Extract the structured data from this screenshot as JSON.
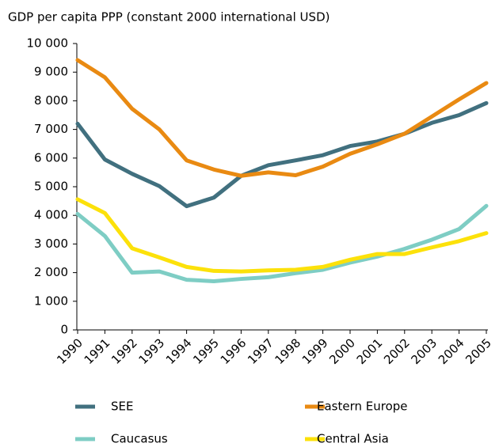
{
  "chart_data": {
    "type": "line",
    "title": "GDP per capita PPP (constant 2000 international USD)",
    "categories": [
      "1990",
      "1991",
      "1992",
      "1993",
      "1994",
      "1995",
      "1996",
      "1997",
      "1998",
      "1999",
      "2000",
      "2001",
      "2002",
      "2003",
      "2004",
      "2005"
    ],
    "series": [
      {
        "name": "SEE",
        "color": "#41707f",
        "values": [
          7200,
          5950,
          5450,
          5020,
          4320,
          4620,
          5380,
          5750,
          5920,
          6100,
          6420,
          6580,
          6850,
          7230,
          7500,
          7920
        ]
      },
      {
        "name": "Eastern Europe",
        "color": "#e98a12",
        "values": [
          9420,
          8820,
          7720,
          7000,
          5920,
          5600,
          5380,
          5500,
          5400,
          5700,
          6150,
          6480,
          6850,
          7450,
          8050,
          8620
        ]
      },
      {
        "name": "Caucasus",
        "color": "#7ecdc4",
        "values": [
          4050,
          3280,
          2000,
          2040,
          1750,
          1700,
          1780,
          1840,
          1980,
          2100,
          2350,
          2560,
          2830,
          3150,
          3520,
          4330
        ]
      },
      {
        "name": "Central Asia",
        "color": "#fce10a",
        "values": [
          4560,
          4080,
          2850,
          2530,
          2200,
          2060,
          2040,
          2080,
          2100,
          2200,
          2450,
          2650,
          2650,
          2880,
          3100,
          3380
        ]
      }
    ],
    "ylim": [
      0,
      10000
    ],
    "yticks": [
      0,
      {
        "value": 1000,
        "label": "1 000"
      },
      {
        "value": 2000,
        "label": "2 000"
      },
      {
        "value": 3000,
        "label": "3 000"
      },
      {
        "value": 4000,
        "label": "4 000"
      },
      {
        "value": 5000,
        "label": "5 000"
      },
      {
        "value": 6000,
        "label": "6 000"
      },
      {
        "value": 7000,
        "label": "7 000"
      },
      {
        "value": 8000,
        "label": "8 000"
      },
      {
        "value": 9000,
        "label": "9 000"
      },
      {
        "value": 10000,
        "label": "10 000"
      }
    ],
    "grid": false
  }
}
